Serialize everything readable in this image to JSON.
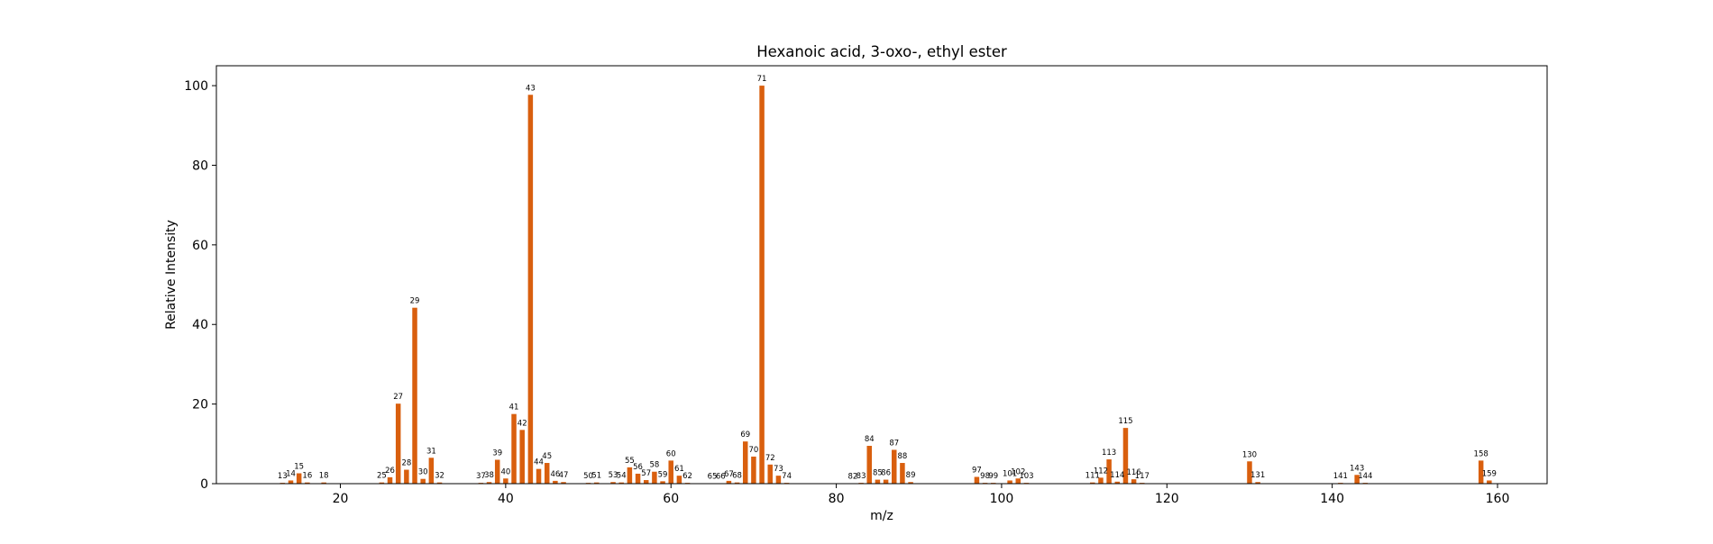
{
  "chart_data": {
    "type": "bar",
    "title": "Hexanoic acid, 3-oxo-, ethyl ester",
    "xlabel": "m/z",
    "ylabel": "Relative Intensity",
    "xlim": [
      5,
      166
    ],
    "ylim": [
      0,
      105
    ],
    "xticks": [
      20,
      40,
      60,
      80,
      100,
      120,
      140,
      160
    ],
    "yticks": [
      0,
      20,
      40,
      60,
      80,
      100
    ],
    "grid": false,
    "bar_color": "#d95f0e",
    "peaks": [
      {
        "mz": 13,
        "intensity": 0.2
      },
      {
        "mz": 14,
        "intensity": 0.8
      },
      {
        "mz": 15,
        "intensity": 2.6
      },
      {
        "mz": 16,
        "intensity": 0.3
      },
      {
        "mz": 18,
        "intensity": 0.3
      },
      {
        "mz": 25,
        "intensity": 0.3
      },
      {
        "mz": 26,
        "intensity": 1.6
      },
      {
        "mz": 27,
        "intensity": 20.1
      },
      {
        "mz": 28,
        "intensity": 3.5
      },
      {
        "mz": 29,
        "intensity": 44.2
      },
      {
        "mz": 30,
        "intensity": 1.2
      },
      {
        "mz": 31,
        "intensity": 6.5
      },
      {
        "mz": 32,
        "intensity": 0.3
      },
      {
        "mz": 37,
        "intensity": 0.2
      },
      {
        "mz": 38,
        "intensity": 0.4
      },
      {
        "mz": 39,
        "intensity": 6.0
      },
      {
        "mz": 40,
        "intensity": 1.3
      },
      {
        "mz": 41,
        "intensity": 17.5
      },
      {
        "mz": 42,
        "intensity": 13.5
      },
      {
        "mz": 43,
        "intensity": 97.7
      },
      {
        "mz": 44,
        "intensity": 3.7
      },
      {
        "mz": 45,
        "intensity": 5.2
      },
      {
        "mz": 46,
        "intensity": 0.7
      },
      {
        "mz": 47,
        "intensity": 0.4
      },
      {
        "mz": 50,
        "intensity": 0.2
      },
      {
        "mz": 51,
        "intensity": 0.3
      },
      {
        "mz": 53,
        "intensity": 0.4
      },
      {
        "mz": 54,
        "intensity": 0.3
      },
      {
        "mz": 55,
        "intensity": 4.1
      },
      {
        "mz": 56,
        "intensity": 2.5
      },
      {
        "mz": 57,
        "intensity": 0.9
      },
      {
        "mz": 58,
        "intensity": 3.0
      },
      {
        "mz": 59,
        "intensity": 0.6
      },
      {
        "mz": 60,
        "intensity": 5.8
      },
      {
        "mz": 61,
        "intensity": 2.0
      },
      {
        "mz": 62,
        "intensity": 0.2
      },
      {
        "mz": 65,
        "intensity": 0.1
      },
      {
        "mz": 66,
        "intensity": 0.1
      },
      {
        "mz": 67,
        "intensity": 0.7
      },
      {
        "mz": 68,
        "intensity": 0.3
      },
      {
        "mz": 69,
        "intensity": 10.6
      },
      {
        "mz": 70,
        "intensity": 6.8
      },
      {
        "mz": 71,
        "intensity": 100.0
      },
      {
        "mz": 72,
        "intensity": 4.8
      },
      {
        "mz": 73,
        "intensity": 2.0
      },
      {
        "mz": 74,
        "intensity": 0.2
      },
      {
        "mz": 82,
        "intensity": 0.1
      },
      {
        "mz": 83,
        "intensity": 0.2
      },
      {
        "mz": 84,
        "intensity": 9.5
      },
      {
        "mz": 85,
        "intensity": 1.0
      },
      {
        "mz": 86,
        "intensity": 1.0
      },
      {
        "mz": 87,
        "intensity": 8.5
      },
      {
        "mz": 88,
        "intensity": 5.2
      },
      {
        "mz": 89,
        "intensity": 0.4
      },
      {
        "mz": 97,
        "intensity": 1.7
      },
      {
        "mz": 98,
        "intensity": 0.2
      },
      {
        "mz": 99,
        "intensity": 0.2
      },
      {
        "mz": 101,
        "intensity": 0.8
      },
      {
        "mz": 102,
        "intensity": 1.3
      },
      {
        "mz": 103,
        "intensity": 0.2
      },
      {
        "mz": 111,
        "intensity": 0.3
      },
      {
        "mz": 112,
        "intensity": 1.5
      },
      {
        "mz": 113,
        "intensity": 6.1
      },
      {
        "mz": 114,
        "intensity": 0.5
      },
      {
        "mz": 115,
        "intensity": 14.0
      },
      {
        "mz": 116,
        "intensity": 1.1
      },
      {
        "mz": 117,
        "intensity": 0.2
      },
      {
        "mz": 130,
        "intensity": 5.6
      },
      {
        "mz": 131,
        "intensity": 0.4
      },
      {
        "mz": 141,
        "intensity": 0.2
      },
      {
        "mz": 143,
        "intensity": 2.2
      },
      {
        "mz": 144,
        "intensity": 0.2
      },
      {
        "mz": 158,
        "intensity": 5.8
      },
      {
        "mz": 159,
        "intensity": 0.8
      }
    ]
  }
}
